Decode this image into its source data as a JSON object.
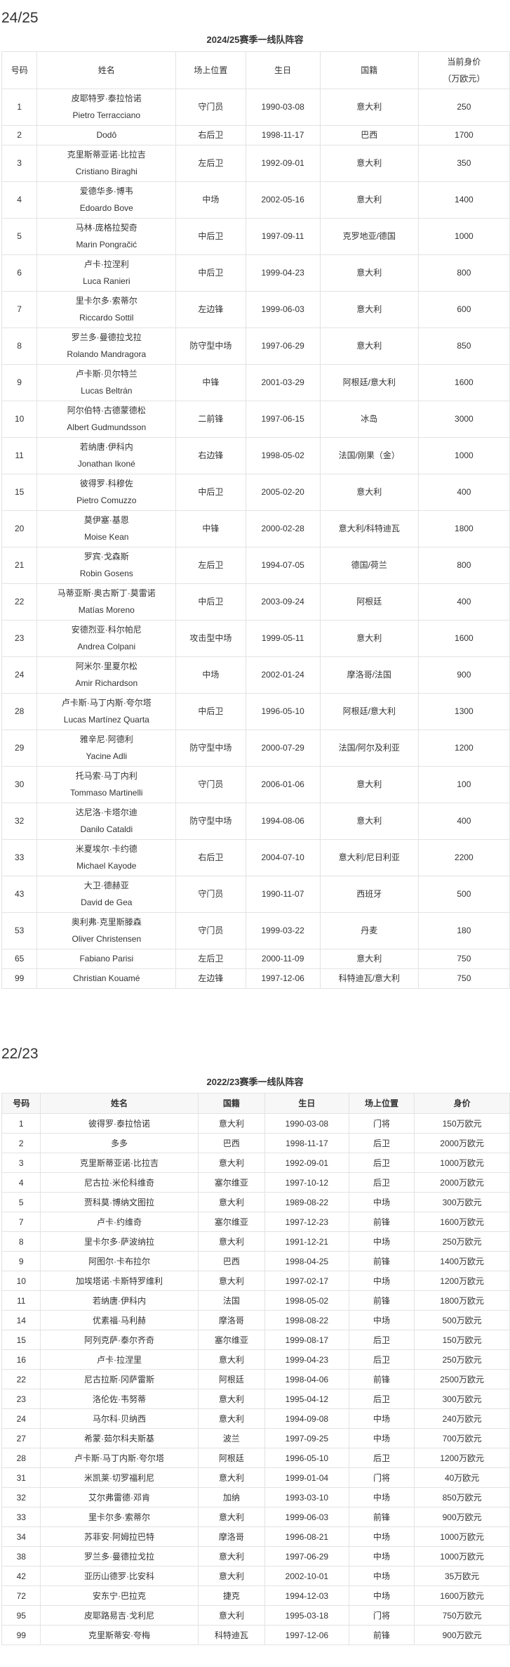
{
  "season_2425": {
    "heading": "24/25",
    "caption": "2024/25赛季一线队阵容",
    "headers": [
      "号码",
      "姓名",
      "场上位置",
      "生日",
      "国籍"
    ],
    "value_header": [
      "当前身价",
      "（万欧元）"
    ],
    "rows": [
      {
        "no": "1",
        "cn": "皮耶特罗·泰拉恰诺",
        "en": "Pietro Terracciano",
        "pos": "守门员",
        "birth": "1990-03-08",
        "nat": "意大利",
        "value": "250"
      },
      {
        "no": "2",
        "cn": "",
        "en": "Dodô",
        "pos": "右后卫",
        "birth": "1998-11-17",
        "nat": "巴西",
        "value": "1700"
      },
      {
        "no": "3",
        "cn": "克里斯蒂亚诺·比拉吉",
        "en": "Cristiano Biraghi",
        "pos": "左后卫",
        "birth": "1992-09-01",
        "nat": "意大利",
        "value": "350"
      },
      {
        "no": "4",
        "cn": "爱德华多·博韦",
        "en": "Edoardo Bove",
        "pos": "中场",
        "birth": "2002-05-16",
        "nat": "意大利",
        "value": "1400"
      },
      {
        "no": "5",
        "cn": "马林·庞格拉契奇",
        "en": "Marin Pongračić",
        "pos": "中后卫",
        "birth": "1997-09-11",
        "nat": "克罗地亚/德国",
        "value": "1000"
      },
      {
        "no": "6",
        "cn": "卢卡·拉涅利",
        "en": "Luca Ranieri",
        "pos": "中后卫",
        "birth": "1999-04-23",
        "nat": "意大利",
        "value": "800"
      },
      {
        "no": "7",
        "cn": "里卡尔多·索蒂尔",
        "en": "Riccardo Sottil",
        "pos": "左边锋",
        "birth": "1999-06-03",
        "nat": "意大利",
        "value": "600"
      },
      {
        "no": "8",
        "cn": "罗兰多·曼德拉戈拉",
        "en": "Rolando Mandragora",
        "pos": "防守型中场",
        "birth": "1997-06-29",
        "nat": "意大利",
        "value": "850"
      },
      {
        "no": "9",
        "cn": "卢卡斯·贝尔特兰",
        "en": "Lucas Beltrán",
        "pos": "中锋",
        "birth": "2001-03-29",
        "nat": "阿根廷/意大利",
        "value": "1600"
      },
      {
        "no": "10",
        "cn": "阿尔伯特·古德蒙德松",
        "en": "Albert Gudmundsson",
        "pos": "二前锋",
        "birth": "1997-06-15",
        "nat": "冰岛",
        "value": "3000"
      },
      {
        "no": "11",
        "cn": "若纳唐·伊科内",
        "en": "Jonathan Ikoné",
        "pos": "右边锋",
        "birth": "1998-05-02",
        "nat": "法国/刚果（金）",
        "value": "1000"
      },
      {
        "no": "15",
        "cn": "彼得罗·科穆佐",
        "en": "Pietro Comuzzo",
        "pos": "中后卫",
        "birth": "2005-02-20",
        "nat": "意大利",
        "value": "400"
      },
      {
        "no": "20",
        "cn": "莫伊塞·基恩",
        "en": "Moise Kean",
        "pos": "中锋",
        "birth": "2000-02-28",
        "nat": "意大利/科特迪瓦",
        "value": "1800"
      },
      {
        "no": "21",
        "cn": "罗宾·戈森斯",
        "en": "Robin Gosens",
        "pos": "左后卫",
        "birth": "1994-07-05",
        "nat": "德国/荷兰",
        "value": "800"
      },
      {
        "no": "22",
        "cn": "马蒂亚斯·奥古斯丁·莫雷诺",
        "en": "Matías Moreno",
        "pos": "中后卫",
        "birth": "2003-09-24",
        "nat": "阿根廷",
        "value": "400"
      },
      {
        "no": "23",
        "cn": "安德烈亚·科尔帕尼",
        "en": "Andrea Colpani",
        "pos": "攻击型中场",
        "birth": "1999-05-11",
        "nat": "意大利",
        "value": "1600"
      },
      {
        "no": "24",
        "cn": "阿米尔·里夏尔松",
        "en": "Amir Richardson",
        "pos": "中场",
        "birth": "2002-01-24",
        "nat": "摩洛哥/法国",
        "value": "900"
      },
      {
        "no": "28",
        "cn": "卢卡斯·马丁内斯·夸尔塔",
        "en": "Lucas Martínez Quarta",
        "pos": "中后卫",
        "birth": "1996-05-10",
        "nat": "阿根廷/意大利",
        "value": "1300"
      },
      {
        "no": "29",
        "cn": "雅辛尼·阿德利",
        "en": "Yacine Adli",
        "pos": "防守型中场",
        "birth": "2000-07-29",
        "nat": "法国/阿尔及利亚",
        "value": "1200"
      },
      {
        "no": "30",
        "cn": "托马索·马丁内利",
        "en": "Tommaso Martinelli",
        "pos": "守门员",
        "birth": "2006-01-06",
        "nat": "意大利",
        "value": "100"
      },
      {
        "no": "32",
        "cn": "达尼洛·卡塔尔迪",
        "en": "Danilo Cataldi",
        "pos": "防守型中场",
        "birth": "1994-08-06",
        "nat": "意大利",
        "value": "400"
      },
      {
        "no": "33",
        "cn": "米夏埃尔·卡约德",
        "en": "Michael Kayode",
        "pos": "右后卫",
        "birth": "2004-07-10",
        "nat": "意大利/尼日利亚",
        "value": "2200"
      },
      {
        "no": "43",
        "cn": "大卫·德赫亚",
        "en": "David de Gea",
        "pos": "守门员",
        "birth": "1990-11-07",
        "nat": "西班牙",
        "value": "500"
      },
      {
        "no": "53",
        "cn": "奥利弗·克里斯滕森",
        "en": "Oliver Christensen",
        "pos": "守门员",
        "birth": "1999-03-22",
        "nat": "丹麦",
        "value": "180"
      },
      {
        "no": "65",
        "cn": "",
        "en": "Fabiano Parisi",
        "pos": "左后卫",
        "birth": "2000-11-09",
        "nat": "意大利",
        "value": "750"
      },
      {
        "no": "99",
        "cn": "",
        "en": "Christian Kouamé",
        "pos": "左边锋",
        "birth": "1997-12-06",
        "nat": "科特迪瓦/意大利",
        "value": "750"
      }
    ]
  },
  "season_2223": {
    "heading": "22/23",
    "caption": "2022/23赛季一线队阵容",
    "headers": [
      "号码",
      "姓名",
      "国籍",
      "生日",
      "场上位置",
      "身价"
    ],
    "rows": [
      [
        "1",
        "彼得罗·泰拉恰诺",
        "意大利",
        "1990-03-08",
        "门将",
        "150万欧元"
      ],
      [
        "2",
        "多多",
        "巴西",
        "1998-11-17",
        "后卫",
        "2000万欧元"
      ],
      [
        "3",
        "克里斯蒂亚诺·比拉吉",
        "意大利",
        "1992-09-01",
        "后卫",
        "1000万欧元"
      ],
      [
        "4",
        "尼古拉·米伦科维奇",
        "塞尔维亚",
        "1997-10-12",
        "后卫",
        "2000万欧元"
      ],
      [
        "5",
        "贾科莫·博纳文图拉",
        "意大利",
        "1989-08-22",
        "中场",
        "300万欧元"
      ],
      [
        "7",
        "卢卡·约维奇",
        "塞尔维亚",
        "1997-12-23",
        "前锋",
        "1600万欧元"
      ],
      [
        "8",
        "里卡尔多·萨波纳拉",
        "意大利",
        "1991-12-21",
        "中场",
        "250万欧元"
      ],
      [
        "9",
        "阿图尔·卡布拉尔",
        "巴西",
        "1998-04-25",
        "前锋",
        "1400万欧元"
      ],
      [
        "10",
        "加埃塔诺·卡斯特罗维利",
        "意大利",
        "1997-02-17",
        "中场",
        "1200万欧元"
      ],
      [
        "11",
        "若纳唐·伊科内",
        "法国",
        "1998-05-02",
        "前锋",
        "1800万欧元"
      ],
      [
        "14",
        "优素福·马利赫",
        "摩洛哥",
        "1998-08-22",
        "中场",
        "500万欧元"
      ],
      [
        "15",
        "阿列克萨·泰尔齐奇",
        "塞尔维亚",
        "1999-08-17",
        "后卫",
        "150万欧元"
      ],
      [
        "16",
        "卢卡·拉涅里",
        "意大利",
        "1999-04-23",
        "后卫",
        "250万欧元"
      ],
      [
        "22",
        "尼古拉斯·冈萨雷斯",
        "阿根廷",
        "1998-04-06",
        "前锋",
        "2500万欧元"
      ],
      [
        "23",
        "洛伦佐·韦努蒂",
        "意大利",
        "1995-04-12",
        "后卫",
        "300万欧元"
      ],
      [
        "24",
        "马尔科·贝纳西",
        "意大利",
        "1994-09-08",
        "中场",
        "240万欧元"
      ],
      [
        "27",
        "希蒙·茹尔科夫斯基",
        "波兰",
        "1997-09-25",
        "中场",
        "700万欧元"
      ],
      [
        "28",
        "卢卡斯·马丁内斯·夸尔塔",
        "阿根廷",
        "1996-05-10",
        "后卫",
        "1200万欧元"
      ],
      [
        "31",
        "米凯莱·切罗福利尼",
        "意大利",
        "1999-01-04",
        "门将",
        "40万欧元"
      ],
      [
        "32",
        "艾尔弗雷德·邓肯",
        "加纳",
        "1993-03-10",
        "中场",
        "850万欧元"
      ],
      [
        "33",
        "里卡尔多·索蒂尔",
        "意大利",
        "1999-06-03",
        "前锋",
        "900万欧元"
      ],
      [
        "34",
        "苏菲安·阿姆拉巴特",
        "摩洛哥",
        "1996-08-21",
        "中场",
        "1000万欧元"
      ],
      [
        "38",
        "罗兰多·曼德拉戈拉",
        "意大利",
        "1997-06-29",
        "中场",
        "1000万欧元"
      ],
      [
        "42",
        "亚历山德罗·比安科",
        "意大利",
        "2002-10-01",
        "中场",
        "35万欧元"
      ],
      [
        "72",
        "安东宁·巴拉克",
        "捷克",
        "1994-12-03",
        "中场",
        "1600万欧元"
      ],
      [
        "95",
        "皮耶路易吉·戈利尼",
        "意大利",
        "1995-03-18",
        "门将",
        "750万欧元"
      ],
      [
        "99",
        "克里斯蒂安·夸梅",
        "科特迪瓦",
        "1997-12-06",
        "前锋",
        "900万欧元"
      ]
    ]
  }
}
